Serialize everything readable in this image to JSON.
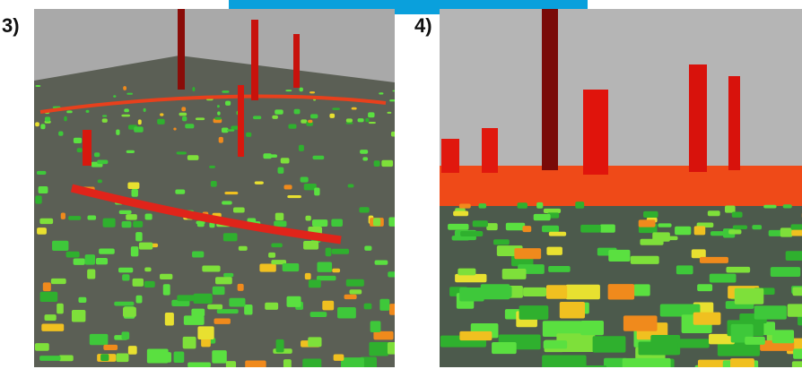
{
  "panels": [
    {
      "label": "3)"
    },
    {
      "label": "4)"
    }
  ]
}
